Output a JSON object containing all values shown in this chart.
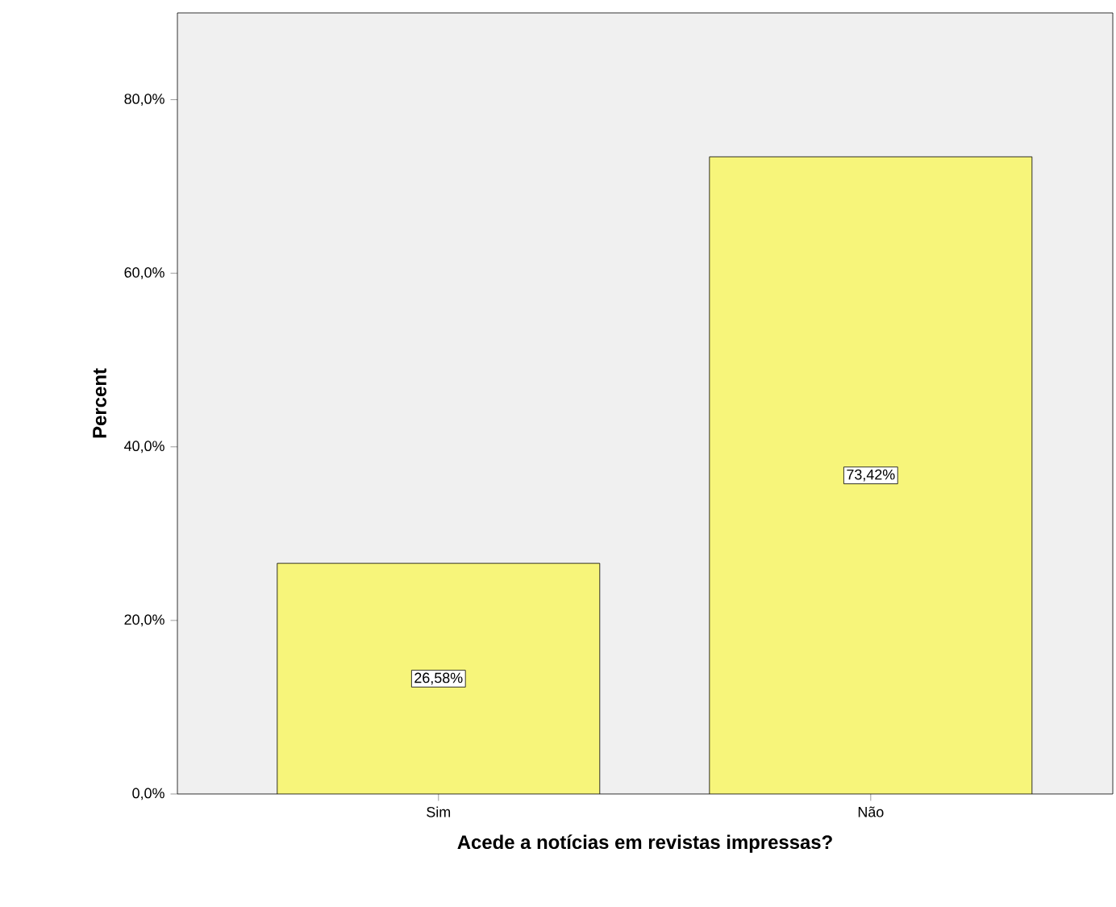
{
  "chart_data": {
    "type": "bar",
    "xlabel": "Acede a notícias em revistas impressas?",
    "ylabel": "Percent",
    "categories": [
      "Sim",
      "Não"
    ],
    "values": [
      26.58,
      73.42
    ],
    "value_labels": [
      "26,58%",
      "73,42%"
    ],
    "color": "#f7f57a",
    "ylim": [
      0,
      90
    ],
    "yticks": [
      {
        "value": 0,
        "label": "0,0%"
      },
      {
        "value": 20,
        "label": "20,0%"
      },
      {
        "value": 40,
        "label": "40,0%"
      },
      {
        "value": 60,
        "label": "60,0%"
      },
      {
        "value": 80,
        "label": "80,0%"
      }
    ]
  }
}
